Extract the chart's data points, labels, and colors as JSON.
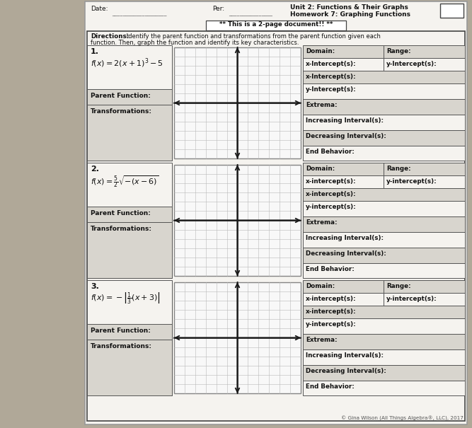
{
  "title_unit": "Unit 2: Functions & Their Graphs",
  "title_hw": "Homework 7: Graphing Functions",
  "date_label": "Date:",
  "per_label": "Per:",
  "two_page_note": "** This is a 2-page document!! **",
  "directions_bold": "Directions:",
  "directions_rest": " Identify the parent function and transformations from the parent function given each\nfunction. Then, graph the function and identify its key characteristics.",
  "p1_func": "f(x) = 2(x + 1)^{3} - 5",
  "p2_func": "f(x) = \\frac{5}{2}\\sqrt{-(x-6)}",
  "p3_func": "f(x) = -\\left|\\frac{1}{3}(x+3)\\right|",
  "parent_label": "Parent Function:",
  "trans_label": "Transformations:",
  "r_labels_1": [
    "Domain:",
    "Range:",
    "x-Intercept(s):",
    "y-Intercept(s):",
    "Extrema:",
    "Increasing Interval(s):",
    "Decreasing Interval(s):",
    "End Behavior:"
  ],
  "r_labels_2": [
    "Domain:",
    "Range:",
    "x-intercept(s):",
    "y-intercept(s):",
    "Extrema:",
    "Increasing Interval(s):",
    "Decreasing Interval(s):",
    "End Behavior:"
  ],
  "r_labels_3": [
    "Domain:",
    "Range:",
    "x-intercept(s):",
    "y-intercept(s):",
    "Extrema:",
    "Increasing Interval(s):",
    "Decreasing Interval(s):",
    "End Behavior:"
  ],
  "copyright": "© Gina Wilson (All Things Algebra®, LLC), 2017",
  "bg_outer": "#b0a898",
  "bg_paper": "#f5f3ef",
  "cell_gray": "#d8d5ce",
  "row_white": "#f5f3ef",
  "grid_line": "#b8b8b8",
  "axis_line": "#1a1a1a",
  "border_dark": "#444444",
  "text_dark": "#111111",
  "text_med": "#333333"
}
